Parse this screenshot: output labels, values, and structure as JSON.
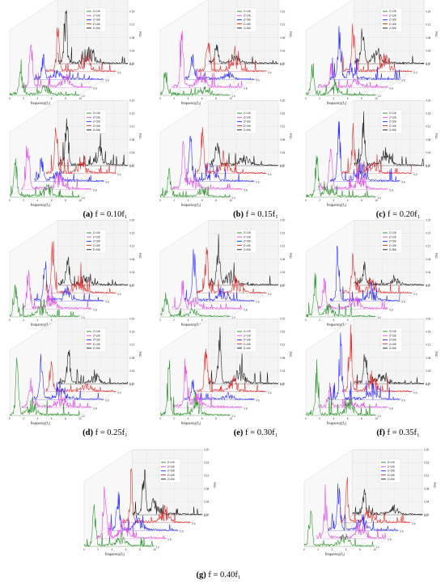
{
  "figure": {
    "captions": [
      {
        "letter": "(a)",
        "text": "f = 0.10f₁"
      },
      {
        "letter": "(b)",
        "text": "f = 0.15f₁"
      },
      {
        "letter": "(c)",
        "text": "f = 0.20f₁"
      },
      {
        "letter": "(d)",
        "text": "f = 0.25f₁"
      },
      {
        "letter": "(e)",
        "text": "f = 0.30f₁"
      },
      {
        "letter": "(f)",
        "text": "f = 0.35f₁"
      },
      {
        "letter": "(g)",
        "text": "f = 0.40f₁"
      }
    ]
  },
  "chart_data": {
    "type": "line",
    "layout": "3d-waterfall",
    "panel_count": 14,
    "xlabel": "frequency(f₀)",
    "zlabel": "PSD",
    "x_ticks": [
      0,
      2,
      4,
      6,
      8,
      10
    ],
    "xlim": [
      0,
      10
    ],
    "z_ticks": [
      "0.00",
      "0.04",
      "0.08",
      "0.12",
      "0.16",
      "0.20"
    ],
    "depth_ticks": [
      "1.0",
      "0.8",
      "0.6",
      "0.4",
      "0.2"
    ],
    "grid": true,
    "legend_position": "top-right",
    "series": [
      {
        "name": "Z=1/6",
        "color": "#1a8c1a"
      },
      {
        "name": "Z=2/6",
        "color": "#e040e0"
      },
      {
        "name": "Z=3/6",
        "color": "#1f1fff"
      },
      {
        "name": "Z=4/6",
        "color": "#e02020"
      },
      {
        "name": "Z=5/6",
        "color": "#111111"
      }
    ]
  }
}
